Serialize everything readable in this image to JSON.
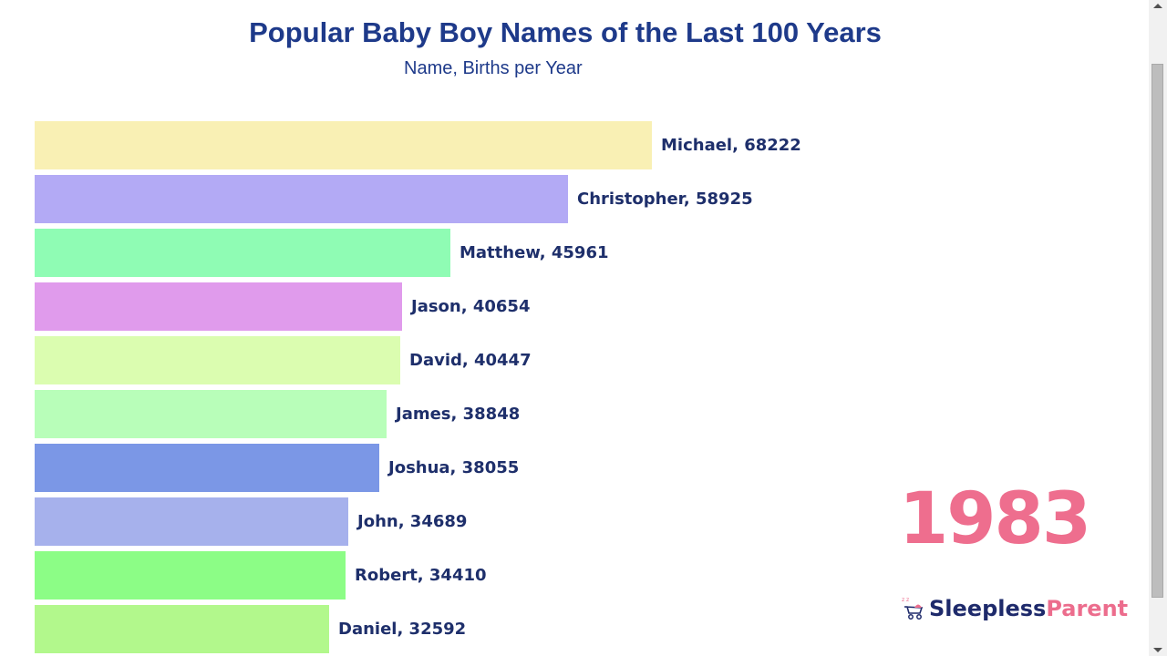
{
  "header": {
    "title": "Popular Baby Boy Names of the Last 100 Years",
    "subtitle": "Name, Births per Year"
  },
  "year": "1983",
  "logo": {
    "icon": "stroller-icon",
    "text_primary": "Sleepless",
    "text_secondary": "Parent",
    "primary_color": "#1e2a6b",
    "secondary_color": "#ec6d8d"
  },
  "bars": [
    {
      "label": "Michael, 68222",
      "color": "#f9f0b4"
    },
    {
      "label": "Christopher, 58925",
      "color": "#b3aaf5"
    },
    {
      "label": "Matthew, 45961",
      "color": "#8ffcb4"
    },
    {
      "label": "Jason, 40654",
      "color": "#e09bec"
    },
    {
      "label": "David, 40447",
      "color": "#dbfdb0"
    },
    {
      "label": "James, 38848",
      "color": "#b8feb9"
    },
    {
      "label": "Joshua, 38055",
      "color": "#7b97e6"
    },
    {
      "label": "John, 34689",
      "color": "#a6b1ec"
    },
    {
      "label": "Robert, 34410",
      "color": "#8cfd86"
    },
    {
      "label": "Daniel, 32592",
      "color": "#b2f88c"
    }
  ],
  "chart_data": {
    "type": "bar",
    "orientation": "horizontal",
    "title": "Popular Baby Boy Names of the Last 100 Years",
    "subtitle": "Name, Births per Year",
    "annotation": "1983",
    "categories": [
      "Michael",
      "Christopher",
      "Matthew",
      "Jason",
      "David",
      "James",
      "Joshua",
      "John",
      "Robert",
      "Daniel"
    ],
    "values": [
      68222,
      58925,
      45961,
      40654,
      40447,
      38848,
      38055,
      34689,
      34410,
      32592
    ],
    "xlabel": "",
    "ylabel": "",
    "grid": false,
    "legend": null
  }
}
